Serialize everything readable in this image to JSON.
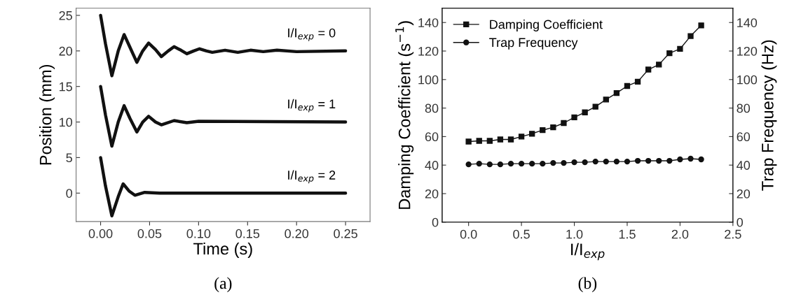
{
  "chart_data": [
    {
      "type": "line",
      "title": "(a)",
      "xlabel": "Time (s)",
      "ylabel": "Position (mm)",
      "xlim": [
        -0.025,
        0.275
      ],
      "ylim": [
        -4,
        26
      ],
      "xticks": [
        {
          "value": 0,
          "label": "0.00"
        },
        {
          "value": 0.05,
          "label": "0.05"
        },
        {
          "value": 0.1,
          "label": "0.10"
        },
        {
          "value": 0.15,
          "label": "0.15"
        },
        {
          "value": 0.2,
          "label": "0.20"
        },
        {
          "value": 0.25,
          "label": "0.25"
        }
      ],
      "yticks": [
        0,
        5,
        10,
        15,
        20,
        25
      ],
      "grid": false,
      "legend": false,
      "marker": "none",
      "line_style": "solid",
      "series": [
        {
          "color": "#111111",
          "x": [
            0,
            0.005,
            0.0115,
            0.018,
            0.024,
            0.03,
            0.037,
            0.043,
            0.049,
            0.056,
            0.062,
            0.069,
            0.075,
            0.082,
            0.088,
            0.095,
            0.101,
            0.108,
            0.114,
            0.127,
            0.14,
            0.153,
            0.166,
            0.18,
            0.2,
            0.25
          ],
          "values": [
            25,
            21,
            16.5,
            20,
            22.3,
            20.5,
            18.4,
            20,
            21.1,
            20.2,
            19.2,
            20,
            20.6,
            20.1,
            19.6,
            20,
            20.3,
            20,
            19.8,
            20.1,
            19.8,
            20.1,
            19.9,
            20.1,
            19.9,
            20
          ]
        },
        {
          "color": "#111111",
          "x": [
            0,
            0.005,
            0.0115,
            0.018,
            0.024,
            0.03,
            0.037,
            0.043,
            0.049,
            0.056,
            0.062,
            0.075,
            0.088,
            0.1,
            0.25
          ],
          "values": [
            15,
            11,
            6.6,
            10,
            12.3,
            10.5,
            8.6,
            10,
            10.8,
            10,
            9.6,
            10.2,
            9.9,
            10.1,
            10
          ]
        },
        {
          "color": "#111111",
          "x": [
            0,
            0.005,
            0.0115,
            0.018,
            0.023,
            0.029,
            0.035,
            0.045,
            0.06,
            0.25
          ],
          "values": [
            5,
            1,
            -3.2,
            -0.5,
            1.3,
            0.3,
            -0.3,
            0.1,
            0,
            0
          ]
        }
      ],
      "annotations": [
        "I/I$_{exp}$ = 0",
        "I/I$_{exp}$ = 1",
        "I/I$_{exp}$ = 2"
      ]
    },
    {
      "type": "line",
      "title": "(b)",
      "xlabel": "I/I$_{exp}$",
      "ylabel": "Damping Coefficient (s$^{−1}$)",
      "y2label": "Trap Frequency (Hz)",
      "xlim": [
        -0.25,
        2.5
      ],
      "ylim": [
        0,
        150
      ],
      "y2lim": [
        0,
        150
      ],
      "xticks": [
        {
          "value": 0,
          "label": "0.0"
        },
        {
          "value": 0.5,
          "label": "0.5"
        },
        {
          "value": 1,
          "label": "1.0"
        },
        {
          "value": 1.5,
          "label": "1.5"
        },
        {
          "value": 2,
          "label": "2.0"
        },
        {
          "value": 2.5,
          "label": "2.5"
        }
      ],
      "yticks": [
        0,
        20,
        40,
        60,
        80,
        100,
        120,
        140
      ],
      "y2ticks": [
        0,
        20,
        40,
        60,
        80,
        100,
        120,
        140
      ],
      "grid": false,
      "legend": "top left",
      "line_style": "solid",
      "x": [
        0,
        0.1,
        0.2,
        0.3,
        0.4,
        0.5,
        0.6,
        0.7,
        0.8,
        0.9,
        1.0,
        1.1,
        1.2,
        1.3,
        1.4,
        1.5,
        1.6,
        1.7,
        1.8,
        1.9,
        2.0,
        2.1,
        2.2
      ],
      "series": [
        {
          "name": "Damping Coefficient",
          "color": "#111111",
          "marker": "square",
          "values": [
            56.5,
            57,
            57,
            58,
            58,
            60,
            62,
            64.5,
            66.5,
            69.5,
            73.5,
            77,
            81,
            86,
            90.5,
            95.5,
            98.5,
            107,
            110.5,
            118.5,
            121.5,
            130.5,
            138
          ]
        },
        {
          "name": "Trap Frequency",
          "color": "#111111",
          "marker": "circle",
          "values": [
            40.5,
            41,
            40.5,
            40.5,
            41,
            41,
            41,
            41,
            41.5,
            41.5,
            42,
            42,
            42.5,
            42.5,
            42.5,
            42.5,
            43,
            43,
            43,
            43,
            44,
            44.5,
            44
          ]
        }
      ]
    }
  ]
}
